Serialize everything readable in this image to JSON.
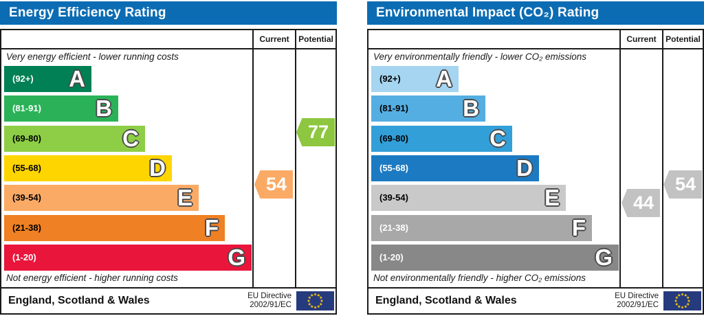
{
  "colors": {
    "header_bg": "#0c6cb3",
    "border": "#1a1a1a",
    "eu_flag_bg": "#263a7e",
    "eu_flag_star": "#ffcc00"
  },
  "panels": [
    {
      "title": "Energy Efficiency Rating",
      "col_current": "Current",
      "col_potential": "Potential",
      "top_note": "Very energy efficient - lower running costs",
      "bottom_note": "Not energy efficient - higher running costs",
      "bands": [
        {
          "range": "(92+)",
          "letter": "A",
          "color": "#008054",
          "label_color": "#ffffff"
        },
        {
          "range": "(81-91)",
          "letter": "B",
          "color": "#2bb258",
          "label_color": "#ffffff"
        },
        {
          "range": "(69-80)",
          "letter": "C",
          "color": "#8dce46",
          "label_color": "#000000"
        },
        {
          "range": "(55-68)",
          "letter": "D",
          "color": "#ffd500",
          "label_color": "#000000"
        },
        {
          "range": "(39-54)",
          "letter": "E",
          "color": "#fbaa65",
          "label_color": "#000000"
        },
        {
          "range": "(21-38)",
          "letter": "F",
          "color": "#ef8023",
          "label_color": "#000000"
        },
        {
          "range": "(1-20)",
          "letter": "G",
          "color": "#e9153b",
          "label_color": "#ffffff"
        }
      ],
      "current": {
        "label": "54",
        "color": "#fbaa65"
      },
      "potential": {
        "label": "77",
        "color": "#8dc63f"
      },
      "footer_region": "England, Scotland & Wales",
      "eu_directive_line1": "EU Directive",
      "eu_directive_line2": "2002/91/EC"
    },
    {
      "title": "Environmental Impact (CO₂) Rating",
      "col_current": "Current",
      "col_potential": "Potential",
      "top_note": "Very environmentally friendly - lower CO₂ emissions",
      "bottom_note": "Not environmentally friendly - higher CO₂ emissions",
      "bands": [
        {
          "range": "(92+)",
          "letter": "A",
          "color": "#a5d5f0",
          "label_color": "#000000"
        },
        {
          "range": "(81-91)",
          "letter": "B",
          "color": "#55aee2",
          "label_color": "#000000"
        },
        {
          "range": "(69-80)",
          "letter": "C",
          "color": "#339fd8",
          "label_color": "#000000"
        },
        {
          "range": "(55-68)",
          "letter": "D",
          "color": "#1c7ac2",
          "label_color": "#ffffff"
        },
        {
          "range": "(39-54)",
          "letter": "E",
          "color": "#c9c9c9",
          "label_color": "#000000"
        },
        {
          "range": "(21-38)",
          "letter": "F",
          "color": "#a8a8a8",
          "label_color": "#ffffff"
        },
        {
          "range": "(1-20)",
          "letter": "G",
          "color": "#888888",
          "label_color": "#ffffff"
        }
      ],
      "current": {
        "label": "44",
        "color": "#c2c2c2"
      },
      "potential": {
        "label": "54",
        "color": "#c2c2c2"
      },
      "footer_region": "England, Scotland & Wales",
      "eu_directive_line1": "EU Directive",
      "eu_directive_line2": "2002/91/EC"
    }
  ],
  "chart_data": [
    {
      "type": "bar",
      "title": "Energy Efficiency Rating",
      "categories": [
        "A",
        "B",
        "C",
        "D",
        "E",
        "F",
        "G"
      ],
      "band_ranges": [
        "92+",
        "81-91",
        "69-80",
        "55-68",
        "39-54",
        "21-38",
        "1-20"
      ],
      "band_colors": [
        "#008054",
        "#2bb258",
        "#8dce46",
        "#ffd500",
        "#fbaa65",
        "#ef8023",
        "#e9153b"
      ],
      "current": 54,
      "potential": 77,
      "current_band": "E",
      "potential_band": "C",
      "scale_min": 1,
      "scale_max": 100,
      "top_label": "Very energy efficient - lower running costs",
      "bottom_label": "Not energy efficient - higher running costs",
      "footer": "England, Scotland & Wales",
      "directive": "EU Directive 2002/91/EC"
    },
    {
      "type": "bar",
      "title": "Environmental Impact (CO₂) Rating",
      "categories": [
        "A",
        "B",
        "C",
        "D",
        "E",
        "F",
        "G"
      ],
      "band_ranges": [
        "92+",
        "81-91",
        "69-80",
        "55-68",
        "39-54",
        "21-38",
        "1-20"
      ],
      "band_colors": [
        "#a5d5f0",
        "#55aee2",
        "#339fd8",
        "#1c7ac2",
        "#c9c9c9",
        "#a8a8a8",
        "#888888"
      ],
      "current": 44,
      "potential": 54,
      "current_band": "E",
      "potential_band": "E",
      "scale_min": 1,
      "scale_max": 100,
      "top_label": "Very environmentally friendly - lower CO₂ emissions",
      "bottom_label": "Not environmentally friendly - higher CO₂ emissions",
      "footer": "England, Scotland & Wales",
      "directive": "EU Directive 2002/91/EC"
    }
  ]
}
